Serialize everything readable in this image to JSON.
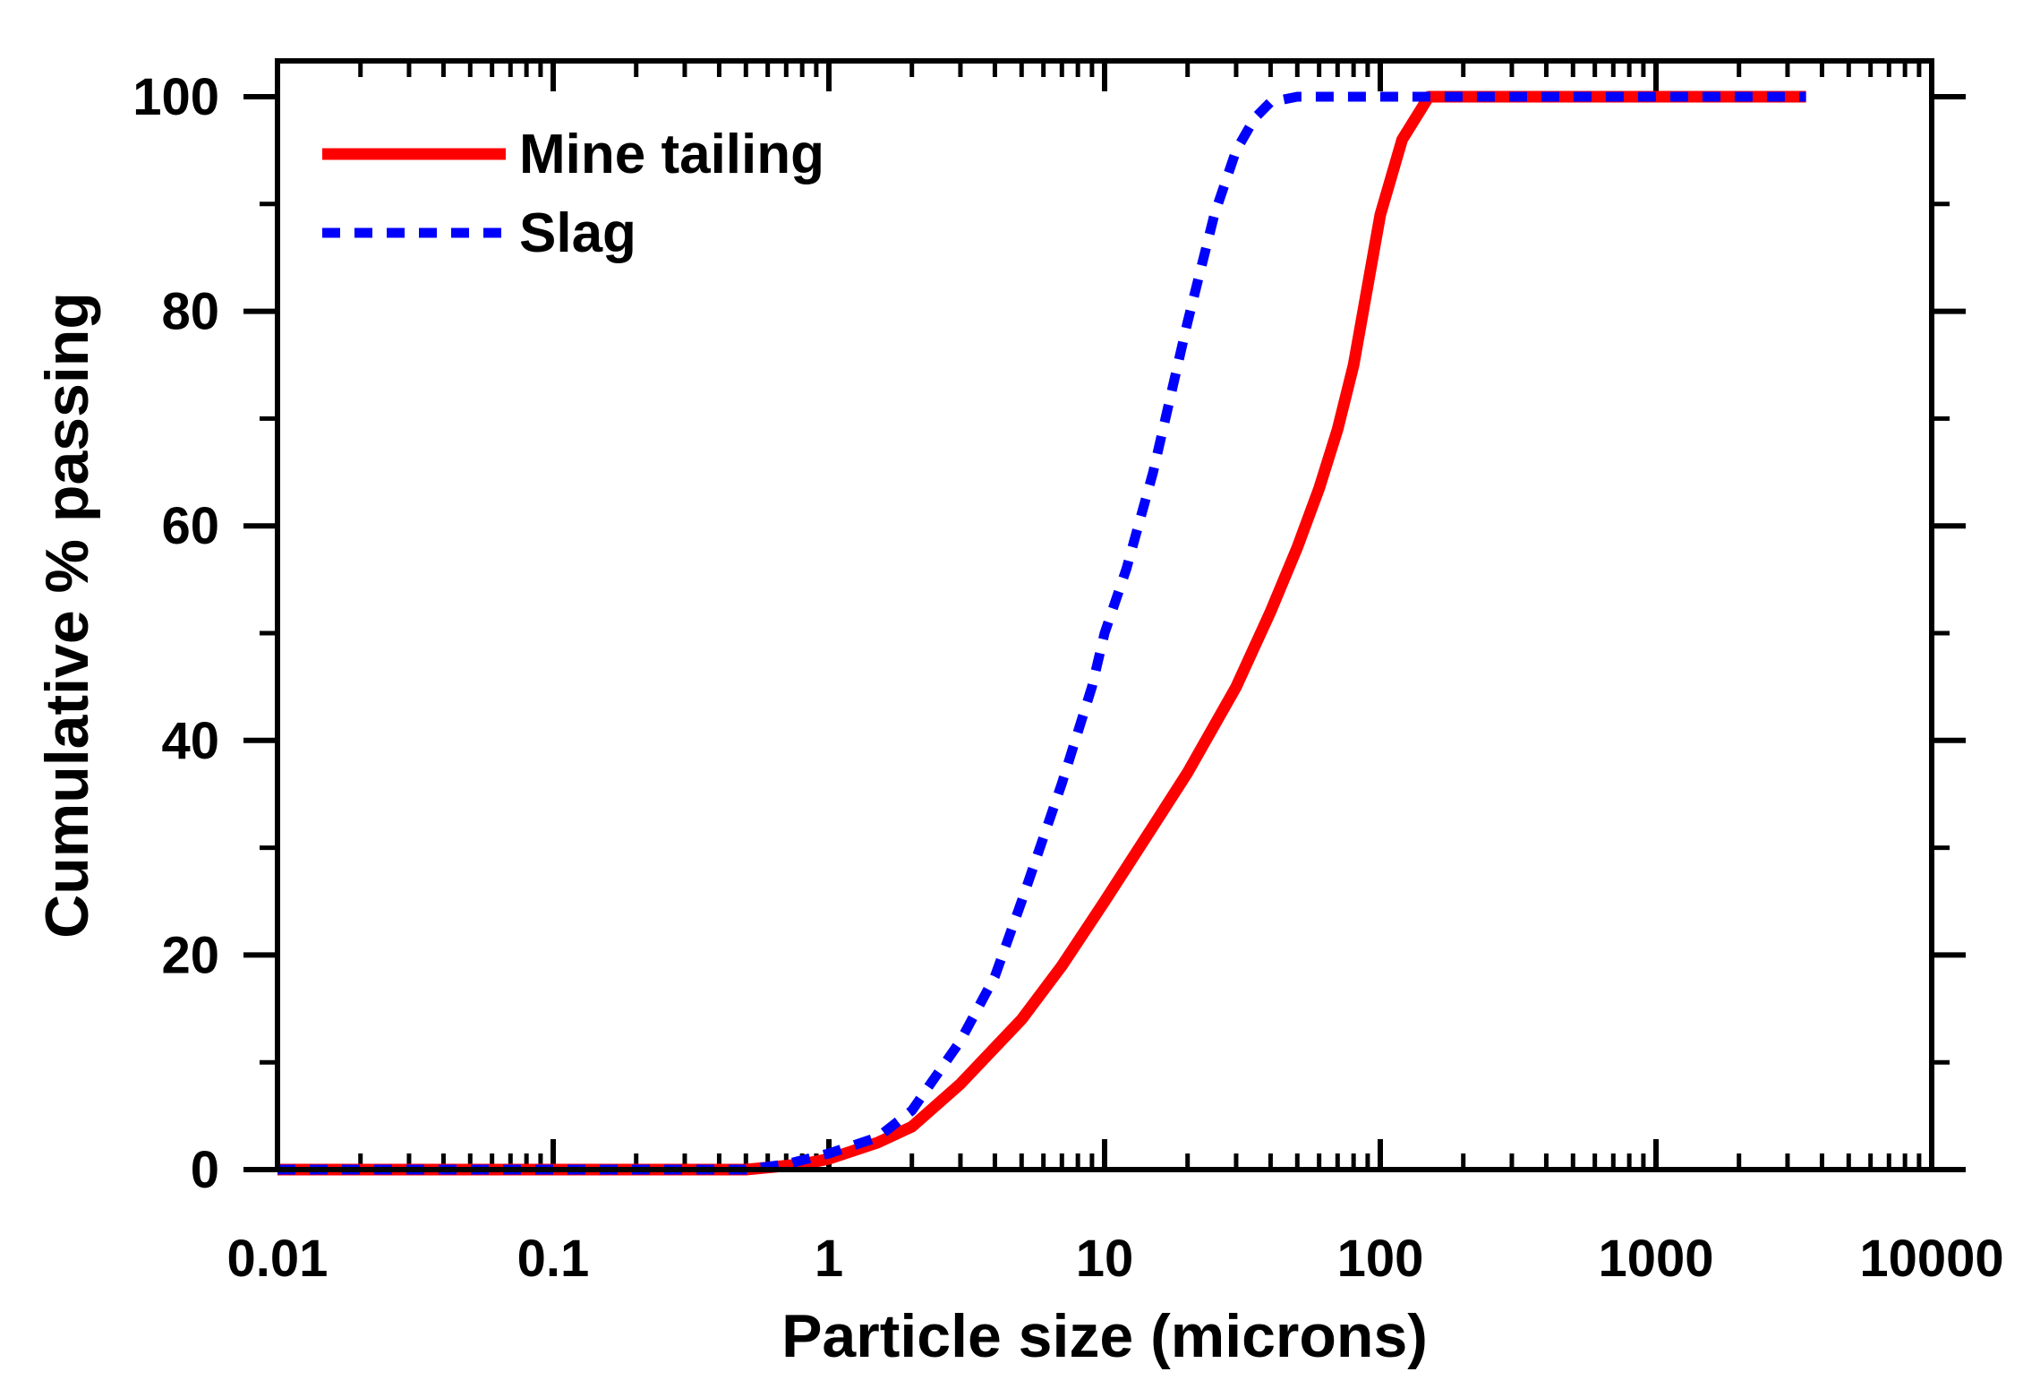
{
  "chart_data": {
    "type": "line",
    "title": "",
    "xlabel": "Particle size (microns)",
    "ylabel": "Cumulative % passing",
    "xscale": "log",
    "xlim": [
      0.01,
      10000
    ],
    "ylim": [
      0,
      100
    ],
    "xticks": [
      0.01,
      0.1,
      1,
      10,
      100,
      1000,
      10000
    ],
    "xtick_labels": [
      "0.01",
      "0.1",
      "1",
      "10",
      "100",
      "1000",
      "10000"
    ],
    "yticks": [
      0,
      20,
      40,
      60,
      80,
      100
    ],
    "ytick_labels": [
      "0",
      "20",
      "40",
      "60",
      "80",
      "100"
    ],
    "grid": false,
    "legend_position": "top-left",
    "series": [
      {
        "name": "Mine tailing",
        "color": "#ff0000",
        "style": "solid",
        "x": [
          0.01,
          0.1,
          0.5,
          0.8,
          1,
          1.5,
          2,
          3,
          5,
          7,
          10,
          15,
          20,
          30,
          40,
          50,
          60,
          70,
          80,
          100,
          120,
          150,
          200,
          500,
          1000,
          3500
        ],
        "y": [
          0,
          0,
          0,
          0.5,
          1,
          2.5,
          4,
          8,
          14,
          19,
          25,
          32,
          37,
          45,
          52,
          58,
          63.5,
          69,
          75,
          89,
          96,
          100,
          100,
          100,
          100,
          100
        ]
      },
      {
        "name": "Slag",
        "color": "#0000ff",
        "style": "dotted",
        "x": [
          0.01,
          0.1,
          0.5,
          0.7,
          1,
          1.5,
          2,
          3,
          4,
          5,
          7,
          9,
          10,
          12,
          15,
          20,
          25,
          30,
          35,
          40,
          50,
          70,
          100,
          200,
          1000,
          3500
        ],
        "y": [
          0,
          0,
          0,
          0.5,
          1.5,
          3,
          5.5,
          12,
          18,
          25,
          36,
          45,
          50,
          56,
          65,
          79,
          89,
          95,
          98,
          99.5,
          100,
          100,
          100,
          100,
          100,
          100
        ]
      }
    ]
  }
}
